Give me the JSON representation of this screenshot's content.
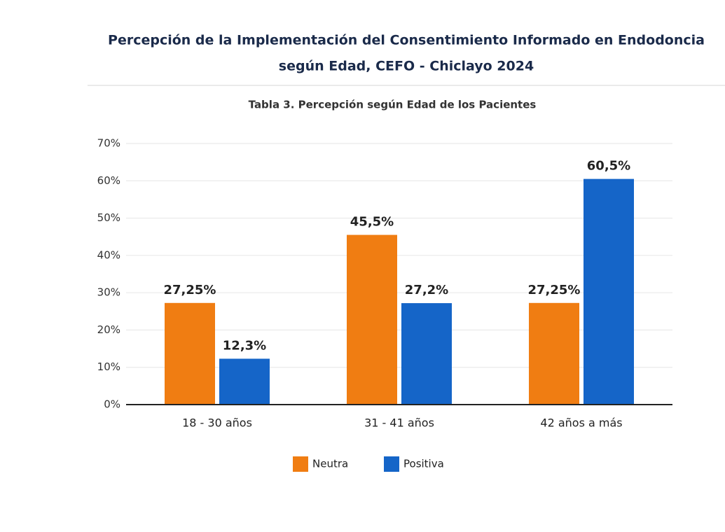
{
  "chart_data": {
    "type": "bar",
    "title": "Percepción de la Implementación del Consentimiento Informado en Endodoncia",
    "title_line2": "según Edad, CEFO - Chiclayo 2024",
    "subtitle": "Tabla 3. Percepción según Edad de los Pacientes",
    "categories": [
      "18 - 30 años",
      "31 - 41 años",
      "42 años a más"
    ],
    "series": [
      {
        "name": "Neutra",
        "color": "#f07d12",
        "values": [
          27.25,
          45.5,
          27.25
        ],
        "value_labels": [
          "27,25%",
          "45,5%",
          "27,25%"
        ]
      },
      {
        "name": "Positiva",
        "color": "#1565c8",
        "values": [
          12.3,
          27.2,
          60.5
        ],
        "value_labels": [
          "12,3%",
          "27,2%",
          "60,5%"
        ]
      }
    ],
    "ylim": [
      0,
      70
    ],
    "yticks": [
      {
        "value": 0,
        "label": "0%"
      },
      {
        "value": 10,
        "label": "10%"
      },
      {
        "value": 20,
        "label": "20%"
      },
      {
        "value": 30,
        "label": "30%"
      },
      {
        "value": 40,
        "label": "40%"
      },
      {
        "value": 50,
        "label": "50%"
      },
      {
        "value": 60,
        "label": "60%"
      },
      {
        "value": 70,
        "label": "70%"
      }
    ],
    "grid": true,
    "legend": "bottom"
  }
}
